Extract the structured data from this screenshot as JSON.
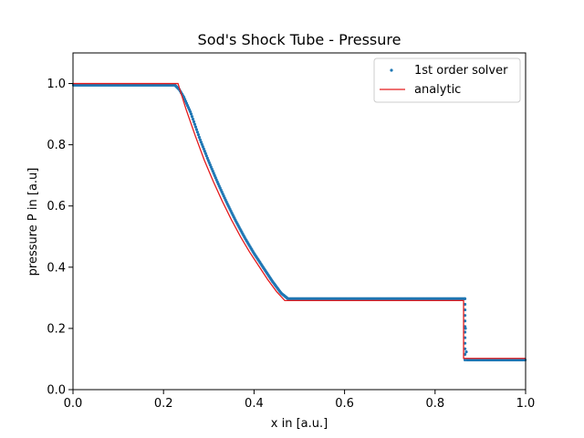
{
  "chart_data": {
    "type": "line",
    "title": "Sod's Shock Tube - Pressure",
    "xlabel": "x in [a.u.]",
    "ylabel": "pressure P in [a.u]",
    "xlim": [
      0.0,
      1.0
    ],
    "ylim": [
      0.0,
      1.1
    ],
    "xticks": [
      "0.0",
      "0.2",
      "0.4",
      "0.6",
      "0.8",
      "1.0"
    ],
    "yticks": [
      "0.0",
      "0.2",
      "0.4",
      "0.6",
      "0.8",
      "1.0"
    ],
    "grid": false,
    "legend_position": "top-right",
    "series": [
      {
        "name": "1st order solver",
        "style": "scatter",
        "color": "#1f77b4",
        "x": [
          0.0,
          0.225,
          0.235,
          0.245,
          0.26,
          0.28,
          0.3,
          0.32,
          0.34,
          0.36,
          0.38,
          0.4,
          0.42,
          0.44,
          0.46,
          0.475,
          0.865,
          0.866,
          0.868,
          0.87,
          1.0
        ],
        "y": [
          0.995,
          0.995,
          0.98,
          0.955,
          0.905,
          0.82,
          0.745,
          0.675,
          0.61,
          0.55,
          0.495,
          0.445,
          0.4,
          0.355,
          0.315,
          0.297,
          0.297,
          0.25,
          0.15,
          0.097,
          0.097
        ]
      },
      {
        "name": "analytic",
        "style": "line",
        "color": "#e41a1c",
        "x": [
          0.0,
          0.232,
          0.25,
          0.27,
          0.29,
          0.31,
          0.33,
          0.35,
          0.37,
          0.39,
          0.41,
          0.43,
          0.45,
          0.468,
          0.863,
          0.863,
          1.0
        ],
        "y": [
          1.0,
          1.0,
          0.915,
          0.83,
          0.75,
          0.68,
          0.615,
          0.555,
          0.5,
          0.45,
          0.405,
          0.36,
          0.32,
          0.291,
          0.291,
          0.102,
          0.102
        ]
      }
    ]
  }
}
